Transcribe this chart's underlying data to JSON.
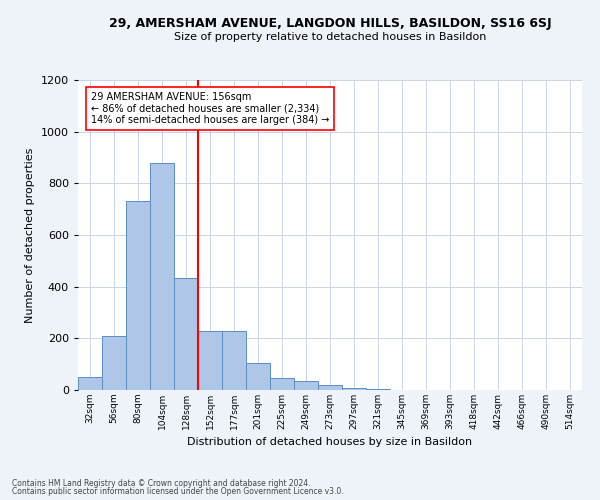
{
  "title_line1": "29, AMERSHAM AVENUE, LANGDON HILLS, BASILDON, SS16 6SJ",
  "title_line2": "Size of property relative to detached houses in Basildon",
  "xlabel": "Distribution of detached houses by size in Basildon",
  "ylabel": "Number of detached properties",
  "bar_values": [
    50,
    210,
    730,
    880,
    435,
    230,
    230,
    105,
    45,
    35,
    20,
    8,
    5,
    0,
    0,
    0,
    0,
    0,
    0,
    0,
    0
  ],
  "categories": [
    "32sqm",
    "56sqm",
    "80sqm",
    "104sqm",
    "128sqm",
    "152sqm",
    "177sqm",
    "201sqm",
    "225sqm",
    "249sqm",
    "273sqm",
    "297sqm",
    "321sqm",
    "345sqm",
    "369sqm",
    "393sqm",
    "418sqm",
    "442sqm",
    "466sqm",
    "490sqm",
    "514sqm"
  ],
  "bar_color": "#aec6e8",
  "bar_edge_color": "#5a8fc2",
  "vline_index": 4.5,
  "vline_color": "red",
  "annotation_text": "29 AMERSHAM AVENUE: 156sqm\n← 86% of detached houses are smaller (2,334)\n14% of semi-detached houses are larger (384) →",
  "annotation_box_color": "white",
  "annotation_box_edge_color": "red",
  "ylim": [
    0,
    1200
  ],
  "yticks": [
    0,
    200,
    400,
    600,
    800,
    1000,
    1200
  ],
  "footnote_line1": "Contains HM Land Registry data © Crown copyright and database right 2024.",
  "footnote_line2": "Contains public sector information licensed under the Open Government Licence v3.0.",
  "bg_color": "#eef2f9",
  "plot_bg_color": "#ffffff",
  "grid_color": "#c8d4e8",
  "title1_fontsize": 9,
  "title2_fontsize": 8,
  "ylabel_fontsize": 8,
  "xlabel_fontsize": 8,
  "ytick_fontsize": 8,
  "xtick_fontsize": 6.5,
  "annot_fontsize": 7,
  "footnote_fontsize": 5.5
}
